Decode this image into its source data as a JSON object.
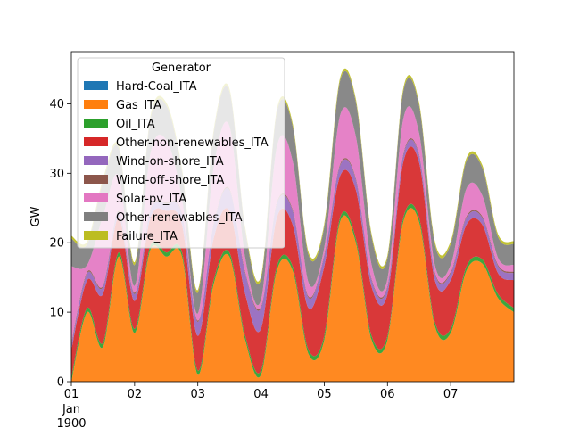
{
  "chart_data": {
    "type": "area",
    "stacked": true,
    "ylabel": "GW",
    "xlabel": "",
    "xlim": [
      0,
      7
    ],
    "ylim": [
      0,
      47.5
    ],
    "x_ticks": [
      {
        "pos": 0,
        "label": "01"
      },
      {
        "pos": 1,
        "label": "02"
      },
      {
        "pos": 2,
        "label": "03"
      },
      {
        "pos": 3,
        "label": "04"
      },
      {
        "pos": 4,
        "label": "05"
      },
      {
        "pos": 5,
        "label": "06"
      },
      {
        "pos": 6,
        "label": "07"
      }
    ],
    "x_sublabels": [
      "Jan",
      "1900"
    ],
    "y_ticks": [
      0,
      10,
      20,
      30,
      40
    ],
    "legend": {
      "title": "Generator",
      "position": "upper-left"
    },
    "x": [
      0,
      0.25,
      0.5,
      0.75,
      1,
      1.25,
      1.5,
      1.75,
      2,
      2.25,
      2.5,
      2.75,
      3,
      3.25,
      3.5,
      3.75,
      4,
      4.25,
      4.5,
      4.75,
      5,
      5.25,
      5.5,
      5.75,
      6,
      6.25,
      6.5,
      6.75,
      7
    ],
    "series": [
      {
        "name": "Hard-Coal_ITA",
        "color": "#1f77b4",
        "values": [
          0,
          0,
          0,
          0,
          0,
          0,
          0,
          0,
          0,
          0,
          0,
          0,
          0,
          0,
          0,
          0,
          0,
          0,
          0,
          0,
          0,
          0,
          0,
          0,
          0,
          0,
          0,
          0,
          0
        ]
      },
      {
        "name": "Gas_ITA",
        "color": "#ff7f0e",
        "values": [
          0,
          10,
          5,
          18,
          7,
          19,
          18,
          18,
          1,
          14,
          18,
          6,
          1,
          16,
          16,
          4,
          6,
          23,
          20,
          6,
          6,
          23,
          23,
          8,
          7,
          16,
          17,
          12,
          10
        ]
      },
      {
        "name": "Oil_ITA",
        "color": "#2ca02c",
        "values": [
          0.6,
          0.6,
          0.6,
          0.6,
          0.6,
          0.6,
          0.6,
          0.6,
          0.6,
          0.6,
          0.6,
          0.6,
          0.6,
          0.6,
          0.6,
          0.6,
          0.6,
          0.6,
          0.6,
          0.6,
          0.6,
          0.6,
          0.6,
          0.6,
          0.6,
          0.6,
          0.6,
          0.6,
          0.6
        ]
      },
      {
        "name": "Other-non-renewables_ITA",
        "color": "#d62728",
        "values": [
          4,
          4,
          7,
          5,
          4,
          4,
          6,
          4,
          5,
          6,
          6,
          6,
          6,
          7,
          6,
          6,
          10,
          6,
          7,
          7,
          6,
          8,
          8,
          6,
          7,
          6,
          5,
          3,
          4
        ]
      },
      {
        "name": "Wind-on-shore_ITA",
        "color": "#9467bd",
        "values": [
          0.8,
          1,
          1,
          0.8,
          1,
          1,
          1,
          1.5,
          2,
          2,
          3,
          3,
          3,
          2,
          2,
          1.5,
          1.5,
          1.5,
          1.5,
          1,
          1,
          1,
          1,
          1,
          1,
          1,
          1,
          1,
          1
        ]
      },
      {
        "name": "Wind-off-shore_ITA",
        "color": "#8c564b",
        "values": [
          0.2,
          0.2,
          0.2,
          0.2,
          0.2,
          0.2,
          0.2,
          0.2,
          0.2,
          0.2,
          0.2,
          0.2,
          0.2,
          0.2,
          0.2,
          0.2,
          0.2,
          0.2,
          0.2,
          0.2,
          0.2,
          0.2,
          0.2,
          0.2,
          0.2,
          0.2,
          0.2,
          0.2,
          0.2
        ]
      },
      {
        "name": "Solar-pv_ITA",
        "color": "#e377c2",
        "values": [
          11,
          1,
          10,
          5,
          1,
          8,
          9,
          2,
          1,
          8,
          9,
          2,
          1,
          8,
          7,
          2,
          1,
          7,
          6,
          2,
          1,
          5,
          3,
          1,
          1,
          4,
          3,
          1,
          1
        ]
      },
      {
        "name": "Other-renewables_ITA",
        "color": "#7f7f7f",
        "values": [
          4,
          3,
          5,
          4,
          3,
          5,
          5,
          4,
          3,
          5,
          5,
          4,
          3,
          5,
          5,
          4,
          3,
          5,
          5,
          4,
          3,
          4,
          4,
          3,
          3,
          4,
          4,
          3,
          3
        ]
      },
      {
        "name": "Failure_ITA",
        "color": "#bcbd22",
        "values": [
          0.4,
          0.4,
          0.4,
          0.4,
          0.4,
          0.4,
          0.4,
          0.4,
          0.4,
          0.4,
          0.4,
          0.4,
          0.4,
          0.4,
          0.4,
          0.4,
          0.4,
          0.4,
          0.4,
          0.4,
          0.4,
          0.4,
          0.4,
          0.4,
          0.4,
          0.4,
          0.4,
          0.4,
          0.4
        ]
      }
    ]
  }
}
